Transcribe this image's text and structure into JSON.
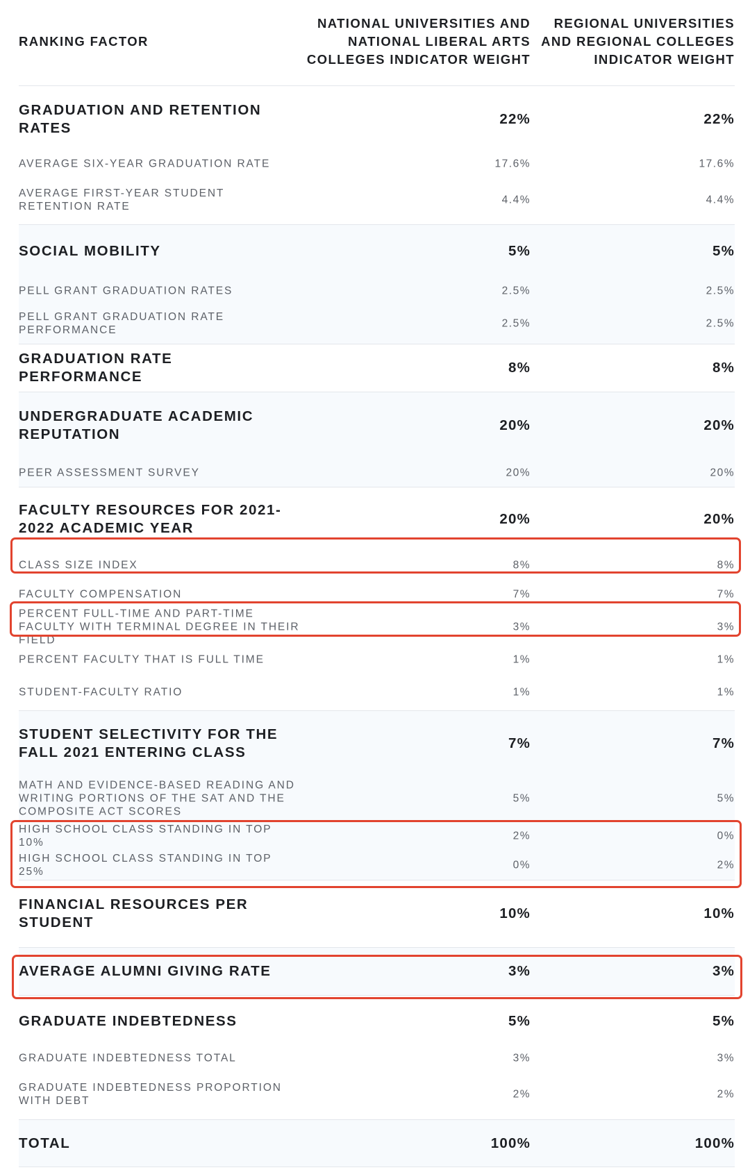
{
  "header": {
    "factor": "RANKING FACTOR",
    "col1": "NATIONAL UNIVERSITIES AND NATIONAL LIBERAL ARTS COLLEGES INDICATOR WEIGHT",
    "col2": "REGIONAL UNIVERSITIES AND REGIONAL COLLEGES INDICATOR WEIGHT"
  },
  "sections": [
    {
      "label": "GRADUATION AND RETENTION RATES",
      "national": "22%",
      "regional": "22%",
      "subs": [
        {
          "label": "AVERAGE SIX-YEAR GRADUATION RATE",
          "national": "17.6%",
          "regional": "17.6%"
        },
        {
          "label": "AVERAGE FIRST-YEAR STUDENT RETENTION RATE",
          "national": "4.4%",
          "regional": "4.4%"
        }
      ]
    },
    {
      "label": "SOCIAL MOBILITY",
      "national": "5%",
      "regional": "5%",
      "subs": [
        {
          "label": "PELL GRANT GRADUATION RATES",
          "national": "2.5%",
          "regional": "2.5%"
        },
        {
          "label": "PELL GRANT GRADUATION RATE PERFORMANCE",
          "national": "2.5%",
          "regional": "2.5%"
        }
      ]
    },
    {
      "label": "GRADUATION RATE PERFORMANCE",
      "national": "8%",
      "regional": "8%",
      "subs": []
    },
    {
      "label": "UNDERGRADUATE ACADEMIC REPUTATION",
      "national": "20%",
      "regional": "20%",
      "subs": [
        {
          "label": "PEER ASSESSMENT SURVEY",
          "national": "20%",
          "regional": "20%"
        }
      ]
    },
    {
      "label": "FACULTY RESOURCES FOR 2021-2022 ACADEMIC YEAR",
      "national": "20%",
      "regional": "20%",
      "subs": [
        {
          "label": "CLASS SIZE INDEX",
          "national": "8%",
          "regional": "8%"
        },
        {
          "label": "FACULTY COMPENSATION",
          "national": "7%",
          "regional": "7%"
        },
        {
          "label": "PERCENT FULL-TIME AND PART-TIME FACULTY WITH TERMINAL DEGREE IN THEIR FIELD",
          "national": "3%",
          "regional": "3%"
        },
        {
          "label": "PERCENT FACULTY THAT IS FULL TIME",
          "national": "1%",
          "regional": "1%"
        },
        {
          "label": "STUDENT-FACULTY RATIO",
          "national": "1%",
          "regional": "1%"
        }
      ]
    },
    {
      "label": "STUDENT SELECTIVITY FOR THE FALL 2021 ENTERING CLASS",
      "national": "7%",
      "regional": "7%",
      "subs": [
        {
          "label": "MATH AND EVIDENCE-BASED READING AND WRITING PORTIONS OF THE SAT AND THE COMPOSITE ACT SCORES",
          "national": "5%",
          "regional": "5%"
        },
        {
          "label": "HIGH SCHOOL CLASS STANDING IN TOP 10%",
          "national": "2%",
          "regional": "0%"
        },
        {
          "label": "HIGH SCHOOL CLASS STANDING IN TOP 25%",
          "national": "0%",
          "regional": "2%"
        }
      ]
    },
    {
      "label": "FINANCIAL RESOURCES PER STUDENT",
      "national": "10%",
      "regional": "10%",
      "subs": []
    },
    {
      "label": "AVERAGE ALUMNI GIVING RATE",
      "national": "3%",
      "regional": "3%",
      "subs": []
    },
    {
      "label": "GRADUATE INDEBTEDNESS",
      "national": "5%",
      "regional": "5%",
      "subs": [
        {
          "label": "GRADUATE INDEBTEDNESS TOTAL",
          "national": "3%",
          "regional": "3%"
        },
        {
          "label": "GRADUATE INDEBTEDNESS PROPORTION WITH DEBT",
          "national": "2%",
          "regional": "2%"
        }
      ]
    },
    {
      "label": "TOTAL",
      "national": "100%",
      "regional": "100%",
      "subs": []
    }
  ]
}
